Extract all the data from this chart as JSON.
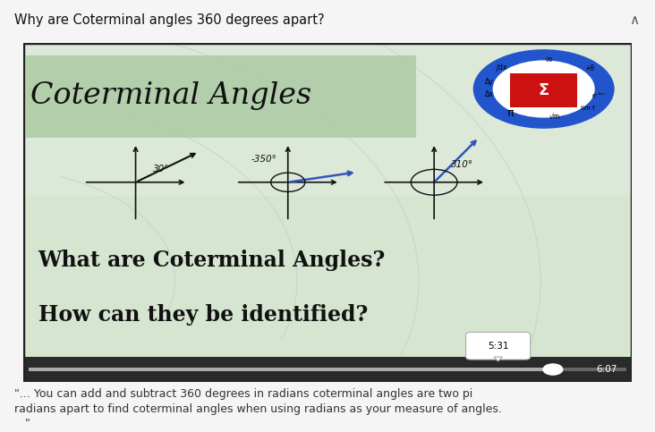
{
  "title": "Why are Coterminal angles 360 degrees apart?",
  "video_title": "Coterminal Angles",
  "video_subtitle1": "What are Coterminal Angles?",
  "video_subtitle2": "How can they be identified?",
  "timestamp": "5:31",
  "duration": "6:07",
  "caption_line1": "\"... You can add and subtract 360 degrees in radians coterminal angles are two pi",
  "caption_line2": "radians apart to find coterminal angles when using radians as your measure of angles.",
  "caption_line3": "   \"",
  "angle1_label": "30°",
  "angle2_label": "-350°",
  "angle3_label": "310°",
  "bg_page": "#f5f5f5",
  "title_bar_bg": "#f5f5f5",
  "title_color": "#111111",
  "video_border_color": "#222222",
  "video_bg": "#d8e8d0",
  "video_bg_top": "#e8f0e8",
  "green_title_bg": "#b8d8b0",
  "caption_bg": "#eef2f8",
  "caption_text_color": "#333333",
  "separator_color": "#cccccc",
  "progress_bg": "#444444",
  "progress_track": "#888888",
  "progress_fill": "#bbbbbb",
  "thumb_color": "#ffffff",
  "timestamp_bg": "#ffffff",
  "duration_color": "#ffffff",
  "subtitle_color": "#111111",
  "logo_blue": "#2255cc",
  "logo_white": "#ffffff",
  "logo_red": "#cc1111"
}
